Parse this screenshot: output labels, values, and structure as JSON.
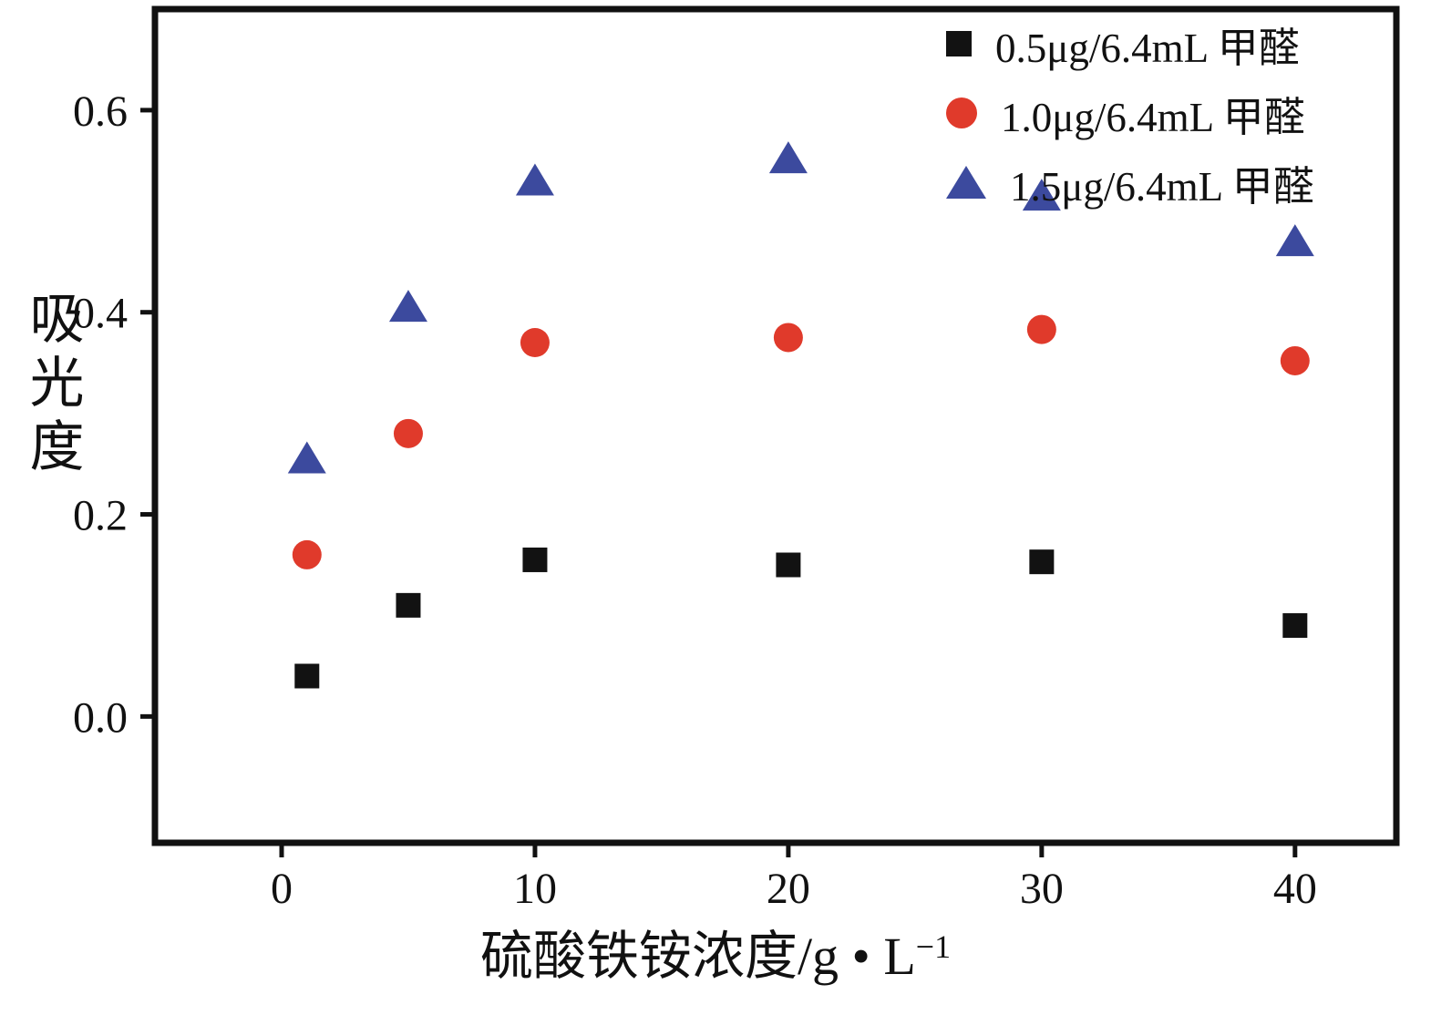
{
  "figure": {
    "background": "#ffffff",
    "axis_color": "#111111"
  },
  "chart_data": {
    "type": "scatter",
    "title": "",
    "xlabel_base": "硫酸铁铵浓度/g • L",
    "xlabel_exponent": "−1",
    "ylabel": "吸光度",
    "x": [
      1,
      5,
      10,
      20,
      30,
      40
    ],
    "xticks": [
      0,
      10,
      20,
      30,
      40
    ],
    "yticks": [
      "0.0",
      "0.2",
      "0.4",
      "0.6"
    ],
    "xlim": [
      -5,
      44
    ],
    "ylim": [
      -0.125,
      0.7
    ],
    "grid": false,
    "legend_position": "top-right-inside",
    "series": [
      {
        "name": "0.5μg/6.4mL 甲醛",
        "marker": "square",
        "color": "#121212",
        "values": [
          0.04,
          0.11,
          0.155,
          0.15,
          0.153,
          0.09
        ]
      },
      {
        "name": "1.0μg/6.4mL 甲醛",
        "marker": "circle",
        "color": "#e03a2b",
        "values": [
          0.16,
          0.28,
          0.37,
          0.375,
          0.383,
          0.352
        ]
      },
      {
        "name": "1.5μg/6.4mL 甲醛",
        "marker": "triangle",
        "color": "#3c4a9e",
        "values": [
          0.255,
          0.405,
          0.53,
          0.552,
          0.515,
          0.47
        ]
      }
    ]
  }
}
